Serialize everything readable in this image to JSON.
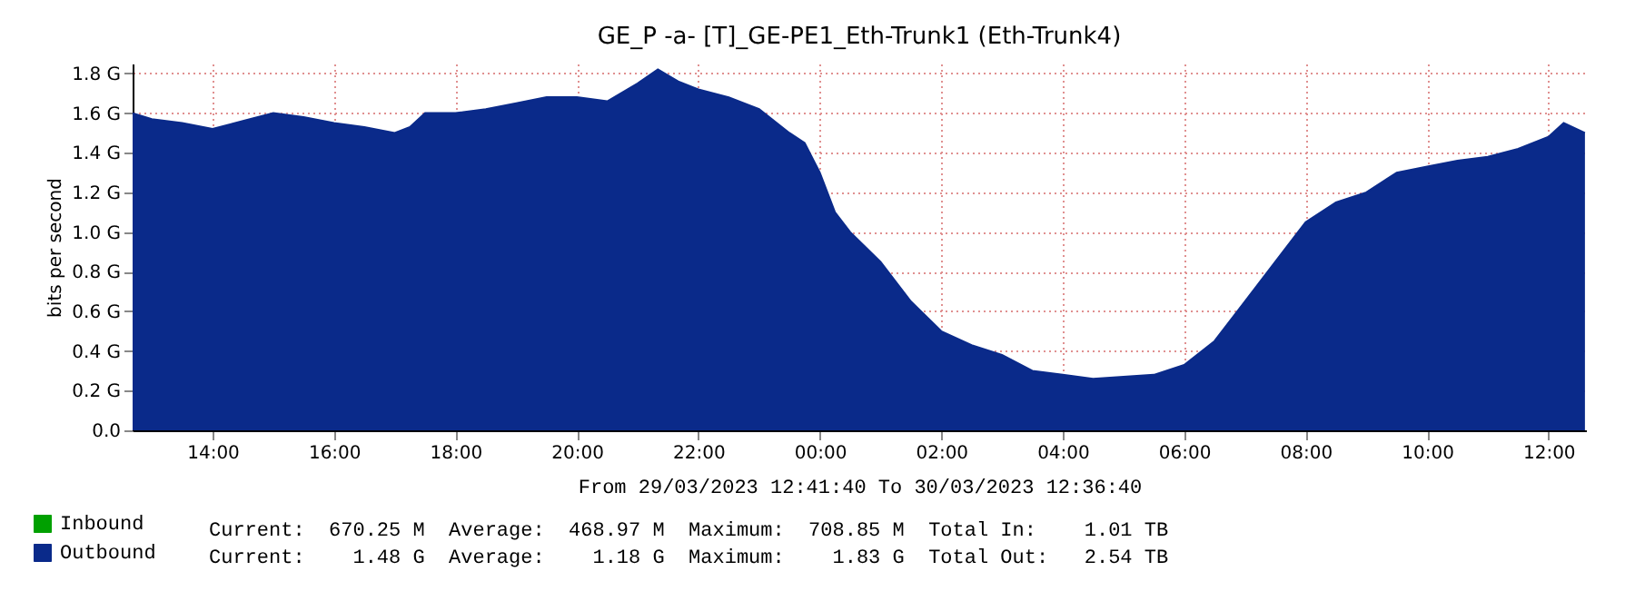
{
  "chart_data": {
    "type": "area",
    "title": "GE_P -a- [T]_GE-PE1_Eth-Trunk1 (Eth-Trunk4)",
    "xlabel": "From 29/03/2023 12:41:40 To 30/03/2023 12:36:40",
    "ylabel": "bits per second",
    "x": [
      "2023-03-29T12:41",
      "2023-03-29T13:00",
      "2023-03-29T13:30",
      "2023-03-29T14:00",
      "2023-03-29T14:30",
      "2023-03-29T15:00",
      "2023-03-29T15:30",
      "2023-03-29T16:00",
      "2023-03-29T16:30",
      "2023-03-29T17:00",
      "2023-03-29T17:15",
      "2023-03-29T17:30",
      "2023-03-29T18:00",
      "2023-03-29T18:30",
      "2023-03-29T19:00",
      "2023-03-29T19:30",
      "2023-03-29T20:00",
      "2023-03-29T20:30",
      "2023-03-29T21:00",
      "2023-03-29T21:20",
      "2023-03-29T21:40",
      "2023-03-29T22:00",
      "2023-03-29T22:30",
      "2023-03-29T23:00",
      "2023-03-29T23:30",
      "2023-03-29T23:45",
      "2023-03-30T00:00",
      "2023-03-30T00:15",
      "2023-03-30T00:30",
      "2023-03-30T01:00",
      "2023-03-30T01:30",
      "2023-03-30T02:00",
      "2023-03-30T02:30",
      "2023-03-30T03:00",
      "2023-03-30T03:30",
      "2023-03-30T04:00",
      "2023-03-30T04:30",
      "2023-03-30T05:00",
      "2023-03-30T05:30",
      "2023-03-30T06:00",
      "2023-03-30T06:30",
      "2023-03-30T07:00",
      "2023-03-30T07:30",
      "2023-03-30T08:00",
      "2023-03-30T08:30",
      "2023-03-30T09:00",
      "2023-03-30T09:30",
      "2023-03-30T10:00",
      "2023-03-30T10:30",
      "2023-03-30T11:00",
      "2023-03-30T11:30",
      "2023-03-30T12:00",
      "2023-03-30T12:15",
      "2023-03-30T12:36"
    ],
    "series": [
      {
        "name": "Inbound",
        "color": "#00a000",
        "values": [
          null,
          null,
          null,
          null,
          null,
          null,
          null,
          null,
          null,
          null,
          null,
          null,
          null,
          null,
          null,
          null,
          null,
          null,
          null,
          null,
          null,
          null,
          null,
          null,
          null,
          null,
          null,
          null,
          null,
          null,
          null,
          null,
          null,
          null,
          null,
          null,
          null,
          null,
          null,
          null,
          null,
          null,
          null,
          null,
          null,
          null,
          null,
          null,
          null,
          null,
          null,
          null,
          null,
          null
        ]
      },
      {
        "name": "Outbound",
        "color": "#0a2a8a",
        "values": [
          1.6,
          1.57,
          1.55,
          1.52,
          1.56,
          1.6,
          1.58,
          1.55,
          1.53,
          1.5,
          1.53,
          1.6,
          1.6,
          1.62,
          1.65,
          1.68,
          1.68,
          1.66,
          1.75,
          1.82,
          1.76,
          1.72,
          1.68,
          1.62,
          1.5,
          1.45,
          1.3,
          1.1,
          1.0,
          0.85,
          0.65,
          0.5,
          0.43,
          0.38,
          0.3,
          0.28,
          0.26,
          0.27,
          0.28,
          0.33,
          0.45,
          0.65,
          0.85,
          1.05,
          1.15,
          1.2,
          1.3,
          1.33,
          1.36,
          1.38,
          1.42,
          1.48,
          1.55,
          1.5
        ]
      }
    ],
    "xlim": [
      "2023-03-29T12:41",
      "2023-03-30T12:37"
    ],
    "xticks": [
      {
        "value": "2023-03-29T14:00",
        "label": "14:00"
      },
      {
        "value": "2023-03-29T16:00",
        "label": "16:00"
      },
      {
        "value": "2023-03-29T18:00",
        "label": "18:00"
      },
      {
        "value": "2023-03-29T20:00",
        "label": "20:00"
      },
      {
        "value": "2023-03-29T22:00",
        "label": "22:00"
      },
      {
        "value": "2023-03-30T00:00",
        "label": "00:00"
      },
      {
        "value": "2023-03-30T02:00",
        "label": "02:00"
      },
      {
        "value": "2023-03-30T04:00",
        "label": "04:00"
      },
      {
        "value": "2023-03-30T06:00",
        "label": "06:00"
      },
      {
        "value": "2023-03-30T08:00",
        "label": "08:00"
      },
      {
        "value": "2023-03-30T10:00",
        "label": "10:00"
      },
      {
        "value": "2023-03-30T12:00",
        "label": "12:00"
      }
    ],
    "ylim": [
      0,
      1.85
    ],
    "yticks": [
      {
        "value": 0,
        "label": "0.0"
      },
      {
        "value": 0.2,
        "label": "0.2 G"
      },
      {
        "value": 0.4,
        "label": "0.4 G"
      },
      {
        "value": 0.6,
        "label": "0.6 G"
      },
      {
        "value": 0.8,
        "label": "0.8 G"
      },
      {
        "value": 1.0,
        "label": "1.0 G"
      },
      {
        "value": 1.2,
        "label": "1.2 G"
      },
      {
        "value": 1.4,
        "label": "1.4 G"
      },
      {
        "value": 1.6,
        "label": "1.6 G"
      },
      {
        "value": 1.8,
        "label": "1.8 G"
      }
    ],
    "grid": true,
    "legend": "bottom left",
    "annotations": [
      "Current:  670.25 M  Average:  468.97 M  Maximum:  708.85 M  Total In:    1.01 TB",
      "Current:    1.48 G  Average:    1.18 G  Maximum:    1.83 G  Total Out:   2.54 TB"
    ]
  }
}
